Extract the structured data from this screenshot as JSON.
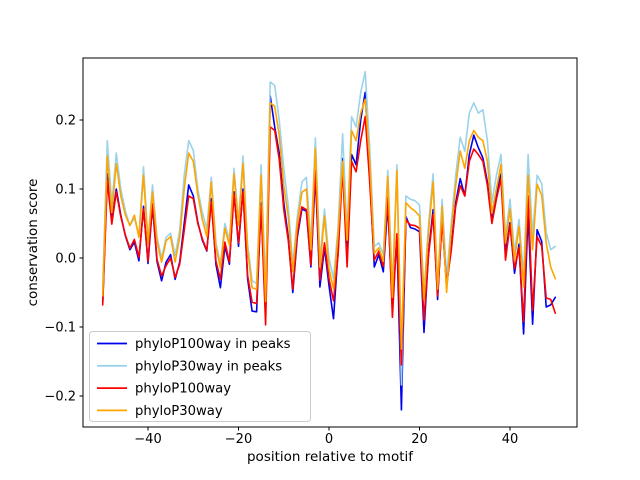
{
  "canvas": {
    "background": "#ffffff",
    "frame_color": "#000000"
  },
  "chart_data": {
    "type": "line",
    "title": "",
    "xlabel": "position relative to motif",
    "ylabel": "conservation score",
    "grid": false,
    "legend_position": "lower left",
    "xlim": [
      -55,
      55
    ],
    "ylim": [
      -0.245,
      0.29
    ],
    "xticks": [
      -40,
      -20,
      0,
      20,
      40
    ],
    "xtick_labels": [
      "−40",
      "−20",
      "0",
      "20",
      "40"
    ],
    "yticks": [
      0.2,
      0.1,
      0.0,
      -0.1,
      -0.2
    ],
    "ytick_labels": [
      "0.2",
      "0.1",
      "0.0",
      "−0.1",
      "−0.2"
    ],
    "x": [
      -50,
      -49,
      -48,
      -47,
      -46,
      -45,
      -44,
      -43,
      -42,
      -41,
      -40,
      -39,
      -38,
      -37,
      -36,
      -35,
      -34,
      -33,
      -32,
      -31,
      -30,
      -29,
      -28,
      -27,
      -26,
      -25,
      -24,
      -23,
      -22,
      -21,
      -20,
      -19,
      -18,
      -17,
      -16,
      -15,
      -14,
      -13,
      -12,
      -11,
      -10,
      -9,
      -8,
      -7,
      -6,
      -5,
      -4,
      -3,
      -2,
      -1,
      0,
      1,
      2,
      3,
      4,
      5,
      6,
      7,
      8,
      9,
      10,
      11,
      12,
      13,
      14,
      15,
      16,
      17,
      18,
      19,
      20,
      21,
      22,
      23,
      24,
      25,
      26,
      27,
      28,
      29,
      30,
      31,
      32,
      33,
      34,
      35,
      36,
      37,
      38,
      39,
      40,
      41,
      42,
      43,
      44,
      45,
      46,
      47,
      48,
      49,
      50
    ],
    "series": [
      {
        "name": "phyloP100way in peaks",
        "color": "#0000ee",
        "values": [
          -0.065,
          0.122,
          0.054,
          0.1,
          0.062,
          0.032,
          0.012,
          0.023,
          -0.004,
          0.075,
          -0.008,
          0.076,
          -0.005,
          -0.033,
          -0.006,
          0.005,
          -0.031,
          -0.006,
          0.05,
          0.106,
          0.09,
          0.052,
          0.026,
          0.01,
          0.086,
          -0.009,
          -0.043,
          0.017,
          -0.009,
          0.096,
          0.017,
          0.1,
          -0.03,
          -0.077,
          -0.078,
          0.08,
          -0.077,
          0.235,
          0.19,
          0.152,
          0.08,
          0.03,
          -0.05,
          0.03,
          0.071,
          0.068,
          -0.013,
          0.12,
          -0.042,
          0.015,
          -0.04,
          -0.088,
          0.01,
          0.144,
          -0.003,
          0.15,
          0.135,
          0.2,
          0.24,
          0.12,
          -0.013,
          0.005,
          -0.02,
          0.078,
          -0.072,
          0.03,
          -0.22,
          0.06,
          0.044,
          0.042,
          0.038,
          -0.108,
          0.01,
          0.07,
          -0.06,
          0.058,
          -0.042,
          0.015,
          0.08,
          0.115,
          0.09,
          0.15,
          0.178,
          0.16,
          0.145,
          0.11,
          0.055,
          0.09,
          0.122,
          0.007,
          0.051,
          -0.022,
          0.02,
          -0.11,
          0.065,
          -0.096,
          0.041,
          0.024,
          -0.071,
          -0.068,
          -0.057
        ]
      },
      {
        "name": "phyloP30way in peaks",
        "color": "#9bd3ea",
        "values": [
          -0.042,
          0.17,
          0.078,
          0.152,
          0.1,
          0.068,
          0.047,
          0.058,
          0.032,
          0.132,
          0.026,
          0.106,
          0.03,
          0,
          0.03,
          0.036,
          0.004,
          0.04,
          0.12,
          0.17,
          0.156,
          0.1,
          0.066,
          0.042,
          0.117,
          0.023,
          -0.009,
          0.05,
          0.025,
          0.13,
          0.053,
          0.148,
          0.02,
          -0.033,
          -0.037,
          0.135,
          -0.043,
          0.255,
          0.25,
          0.2,
          0.13,
          0.075,
          -0.01,
          0.06,
          0.11,
          0.117,
          0.022,
          0.174,
          -0.003,
          0.071,
          0,
          -0.03,
          0.045,
          0.18,
          0.037,
          0.205,
          0.19,
          0.24,
          0.27,
          0.16,
          0.017,
          0.022,
          0.005,
          0.127,
          -0.042,
          0.135,
          -0.184,
          0.09,
          0.085,
          0.083,
          0.077,
          -0.05,
          0.05,
          0.122,
          -0.04,
          0.085,
          -0.028,
          0.05,
          0.12,
          0.175,
          0.155,
          0.21,
          0.225,
          0.21,
          0.215,
          0.17,
          0.08,
          0.12,
          0.15,
          0.031,
          0.085,
          0.008,
          0.056,
          -0.027,
          0.15,
          0.031,
          0.12,
          0.108,
          0.037,
          0.012,
          0.017
        ]
      },
      {
        "name": "phyloP100way",
        "color": "#ff0000",
        "values": [
          -0.068,
          0.112,
          0.049,
          0.096,
          0.06,
          0.033,
          0.014,
          0.027,
          0.001,
          0.071,
          -0.005,
          0.079,
          -0.002,
          -0.026,
          -0.011,
          0,
          -0.028,
          -0.009,
          0.04,
          0.09,
          0.086,
          0.05,
          0.028,
          0.011,
          0.081,
          -0.004,
          -0.031,
          0.023,
          -0.006,
          0.092,
          0.022,
          0.096,
          -0.025,
          -0.064,
          -0.066,
          0.075,
          -0.097,
          0.19,
          0.185,
          0.143,
          0.07,
          0.025,
          -0.045,
          0.035,
          0.074,
          0.07,
          -0.01,
          0.127,
          -0.032,
          0.022,
          -0.03,
          -0.062,
          0.005,
          0.13,
          -0.013,
          0.14,
          0.125,
          0.17,
          0.205,
          0.11,
          -0.003,
          0.01,
          -0.012,
          0.088,
          -0.086,
          0.035,
          -0.155,
          0.055,
          0.048,
          0.047,
          0.043,
          -0.09,
          0.005,
          0.063,
          -0.055,
          0.055,
          -0.037,
          0.01,
          0.075,
          0.105,
          0.09,
          0.14,
          0.158,
          0.15,
          0.14,
          0.105,
          0.05,
          0.085,
          0.115,
          -0.003,
          0.048,
          -0.015,
          0.015,
          -0.092,
          0.09,
          -0.076,
          0.031,
          0.017,
          -0.058,
          -0.06,
          -0.08
        ]
      },
      {
        "name": "phyloP30way",
        "color": "#ffa500",
        "values": [
          -0.055,
          0.148,
          0.066,
          0.137,
          0.09,
          0.062,
          0.047,
          0.062,
          0.03,
          0.12,
          0.021,
          0.096,
          0.024,
          -0.006,
          0.025,
          0.031,
          -0.006,
          0.03,
          0.1,
          0.152,
          0.14,
          0.092,
          0.056,
          0.031,
          0.11,
          0.016,
          -0.014,
          0.043,
          0.019,
          0.122,
          0.047,
          0.137,
          0.012,
          -0.043,
          -0.045,
          0.12,
          -0.063,
          0.225,
          0.22,
          0.178,
          0.105,
          0.06,
          -0.02,
          0.05,
          0.095,
          0.1,
          0.012,
          0.159,
          -0.013,
          0.061,
          -0.015,
          -0.045,
          0.035,
          0.14,
          0.026,
          0.185,
          0.17,
          0.21,
          0.23,
          0.14,
          0.007,
          0.015,
          -0.005,
          0.118,
          -0.057,
          0.127,
          -0.132,
          0.08,
          0.073,
          0.068,
          0.061,
          -0.06,
          0.04,
          0.11,
          -0.045,
          0.075,
          -0.05,
          0.04,
          0.105,
          0.155,
          0.13,
          0.17,
          0.185,
          0.175,
          0.17,
          0.14,
          0.065,
          0.1,
          0.136,
          0.022,
          0.071,
          -0.003,
          0.046,
          -0.042,
          0.12,
          0.012,
          0.107,
          0.091,
          0.022,
          -0.013,
          -0.03
        ]
      }
    ]
  }
}
